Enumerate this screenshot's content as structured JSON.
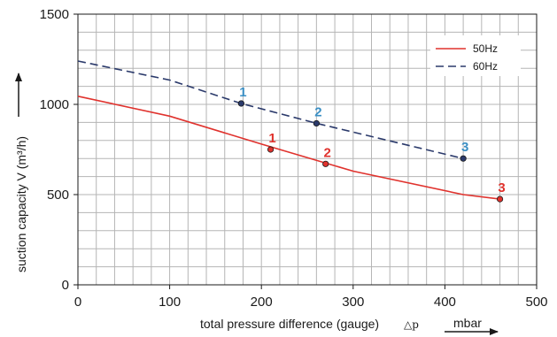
{
  "chart_data": {
    "type": "line",
    "xlabel": "total pressure difference (gauge)",
    "xlabel_symbol": "△p",
    "xunit": "mbar",
    "ylabel": "suction capacity V (m³/h)",
    "xlim": [
      0,
      500
    ],
    "ylim": [
      0,
      1500
    ],
    "x_ticks": [
      0,
      100,
      200,
      300,
      400,
      500
    ],
    "y_ticks": [
      0,
      500,
      1000,
      1500
    ],
    "grid": true,
    "legend_position": "top-right",
    "series": [
      {
        "name": "50Hz",
        "color": "#e0322d",
        "dash": "solid",
        "line": [
          [
            0,
            1045
          ],
          [
            100,
            935
          ],
          [
            200,
            780
          ],
          [
            300,
            630
          ],
          [
            420,
            500
          ],
          [
            460,
            475
          ]
        ],
        "points": [
          {
            "label": "1",
            "x": 210,
            "y": 750
          },
          {
            "label": "2",
            "x": 270,
            "y": 670
          },
          {
            "label": "3",
            "x": 460,
            "y": 475
          }
        ],
        "label_color": "#e0322d"
      },
      {
        "name": "60Hz",
        "color": "#2b3a6b",
        "dash": "dashed",
        "line": [
          [
            0,
            1240
          ],
          [
            100,
            1135
          ],
          [
            178,
            1005
          ],
          [
            260,
            895
          ],
          [
            420,
            700
          ]
        ],
        "points": [
          {
            "label": "1",
            "x": 178,
            "y": 1005
          },
          {
            "label": "2",
            "x": 260,
            "y": 895
          },
          {
            "label": "3",
            "x": 420,
            "y": 700
          }
        ],
        "label_color": "#3b8fc4"
      }
    ]
  }
}
